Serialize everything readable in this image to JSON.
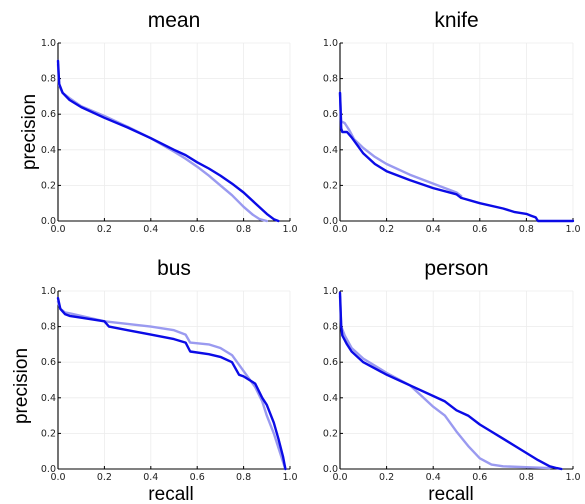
{
  "figure": {
    "ylabel": "precision",
    "xlabel": "recall"
  },
  "chart_data": [
    {
      "type": "line",
      "title": "mean",
      "xlabel": "",
      "ylabel": "precision",
      "xlim": [
        0,
        1
      ],
      "ylim": [
        0,
        1
      ],
      "xticks": [
        "0.0",
        "0.2",
        "0.4",
        "0.6",
        "0.8",
        "1.0"
      ],
      "yticks": [
        "0.0",
        "0.2",
        "0.4",
        "0.6",
        "0.8",
        "1.0"
      ],
      "grid": true,
      "series": [
        {
          "color": "#9a9af0",
          "width": 2.4,
          "x": [
            0,
            0.005,
            0.02,
            0.05,
            0.1,
            0.2,
            0.3,
            0.4,
            0.5,
            0.55,
            0.6,
            0.65,
            0.7,
            0.75,
            0.8,
            0.84,
            0.87,
            0.9
          ],
          "y": [
            0.88,
            0.76,
            0.72,
            0.69,
            0.645,
            0.59,
            0.53,
            0.465,
            0.39,
            0.35,
            0.305,
            0.255,
            0.2,
            0.145,
            0.08,
            0.035,
            0.01,
            0.0
          ]
        },
        {
          "color": "#0b0be6",
          "width": 2.4,
          "x": [
            0,
            0.005,
            0.02,
            0.05,
            0.1,
            0.2,
            0.3,
            0.4,
            0.5,
            0.55,
            0.6,
            0.65,
            0.7,
            0.75,
            0.8,
            0.85,
            0.9,
            0.93,
            0.95
          ],
          "y": [
            0.9,
            0.77,
            0.72,
            0.68,
            0.64,
            0.58,
            0.525,
            0.465,
            0.4,
            0.37,
            0.33,
            0.295,
            0.255,
            0.21,
            0.16,
            0.1,
            0.04,
            0.01,
            0.0
          ]
        }
      ]
    },
    {
      "type": "line",
      "title": "knife",
      "xlabel": "",
      "ylabel": "",
      "xlim": [
        0,
        1
      ],
      "ylim": [
        0,
        1
      ],
      "xticks": [
        "0.0",
        "0.2",
        "0.4",
        "0.6",
        "0.8",
        "1.0"
      ],
      "yticks": [
        "0.0",
        "0.2",
        "0.4",
        "0.6",
        "0.8",
        "1.0"
      ],
      "grid": true,
      "series": [
        {
          "color": "#9a9af0",
          "width": 2.4,
          "x": [
            0,
            0.005,
            0.02,
            0.04,
            0.06,
            0.1,
            0.15,
            0.2,
            0.3,
            0.4,
            0.5,
            0.52
          ],
          "y": [
            0.72,
            0.56,
            0.55,
            0.51,
            0.46,
            0.41,
            0.36,
            0.32,
            0.26,
            0.21,
            0.16,
            0.14
          ]
        },
        {
          "color": "#0b0be6",
          "width": 2.4,
          "x": [
            0,
            0.005,
            0.01,
            0.03,
            0.05,
            0.1,
            0.15,
            0.2,
            0.3,
            0.4,
            0.5,
            0.52,
            0.6,
            0.7,
            0.75,
            0.8,
            0.82,
            0.84,
            0.85,
            0.9,
            0.95,
            1.0
          ],
          "y": [
            0.72,
            0.52,
            0.5,
            0.5,
            0.47,
            0.38,
            0.32,
            0.28,
            0.23,
            0.185,
            0.15,
            0.13,
            0.1,
            0.07,
            0.05,
            0.04,
            0.03,
            0.02,
            0.0,
            0.0,
            0.0,
            0.0
          ]
        }
      ]
    },
    {
      "type": "line",
      "title": "bus",
      "xlabel": "recall",
      "ylabel": "precision",
      "xlim": [
        0,
        1
      ],
      "ylim": [
        0,
        1
      ],
      "xticks": [
        "0.0",
        "0.2",
        "0.4",
        "0.6",
        "0.8",
        "1.0"
      ],
      "yticks": [
        "0.0",
        "0.2",
        "0.4",
        "0.6",
        "0.8",
        "1.0"
      ],
      "grid": true,
      "series": [
        {
          "color": "#9a9af0",
          "width": 2.4,
          "x": [
            0,
            0.01,
            0.03,
            0.05,
            0.1,
            0.2,
            0.3,
            0.4,
            0.5,
            0.55,
            0.57,
            0.65,
            0.7,
            0.75,
            0.8,
            0.85,
            0.88,
            0.9,
            0.93,
            0.95,
            0.97,
            0.98
          ],
          "y": [
            0.94,
            0.9,
            0.88,
            0.875,
            0.86,
            0.83,
            0.815,
            0.8,
            0.78,
            0.755,
            0.71,
            0.7,
            0.68,
            0.64,
            0.55,
            0.46,
            0.38,
            0.3,
            0.2,
            0.12,
            0.04,
            0.0
          ]
        },
        {
          "color": "#0b0be6",
          "width": 2.4,
          "x": [
            0,
            0.01,
            0.03,
            0.05,
            0.1,
            0.2,
            0.22,
            0.3,
            0.4,
            0.5,
            0.55,
            0.57,
            0.65,
            0.7,
            0.75,
            0.78,
            0.8,
            0.85,
            0.88,
            0.9,
            0.93,
            0.95,
            0.97,
            0.98
          ],
          "y": [
            0.96,
            0.9,
            0.87,
            0.86,
            0.85,
            0.83,
            0.8,
            0.78,
            0.755,
            0.73,
            0.71,
            0.66,
            0.645,
            0.63,
            0.6,
            0.53,
            0.52,
            0.48,
            0.4,
            0.36,
            0.26,
            0.17,
            0.07,
            0.0
          ]
        }
      ]
    },
    {
      "type": "line",
      "title": "person",
      "xlabel": "recall",
      "ylabel": "",
      "xlim": [
        0,
        1
      ],
      "ylim": [
        0,
        1
      ],
      "xticks": [
        "0.0",
        "0.2",
        "0.4",
        "0.6",
        "0.8",
        "1.0"
      ],
      "yticks": [
        "0.0",
        "0.2",
        "0.4",
        "0.6",
        "0.8",
        "1.0"
      ],
      "grid": true,
      "series": [
        {
          "color": "#9a9af0",
          "width": 2.4,
          "x": [
            0,
            0.005,
            0.02,
            0.05,
            0.1,
            0.2,
            0.3,
            0.35,
            0.4,
            0.45,
            0.5,
            0.55,
            0.6,
            0.65,
            0.7,
            0.8,
            0.9
          ],
          "y": [
            0.97,
            0.8,
            0.75,
            0.68,
            0.62,
            0.54,
            0.47,
            0.41,
            0.35,
            0.3,
            0.21,
            0.13,
            0.06,
            0.025,
            0.015,
            0.01,
            0.005
          ]
        },
        {
          "color": "#0b0be6",
          "width": 2.4,
          "x": [
            0,
            0.005,
            0.01,
            0.03,
            0.05,
            0.1,
            0.2,
            0.3,
            0.4,
            0.45,
            0.5,
            0.55,
            0.6,
            0.65,
            0.7,
            0.75,
            0.8,
            0.85,
            0.9,
            0.93,
            0.95
          ],
          "y": [
            0.99,
            0.8,
            0.75,
            0.7,
            0.66,
            0.6,
            0.53,
            0.47,
            0.41,
            0.38,
            0.33,
            0.3,
            0.25,
            0.21,
            0.17,
            0.13,
            0.09,
            0.05,
            0.015,
            0.005,
            0.0
          ]
        }
      ]
    }
  ]
}
